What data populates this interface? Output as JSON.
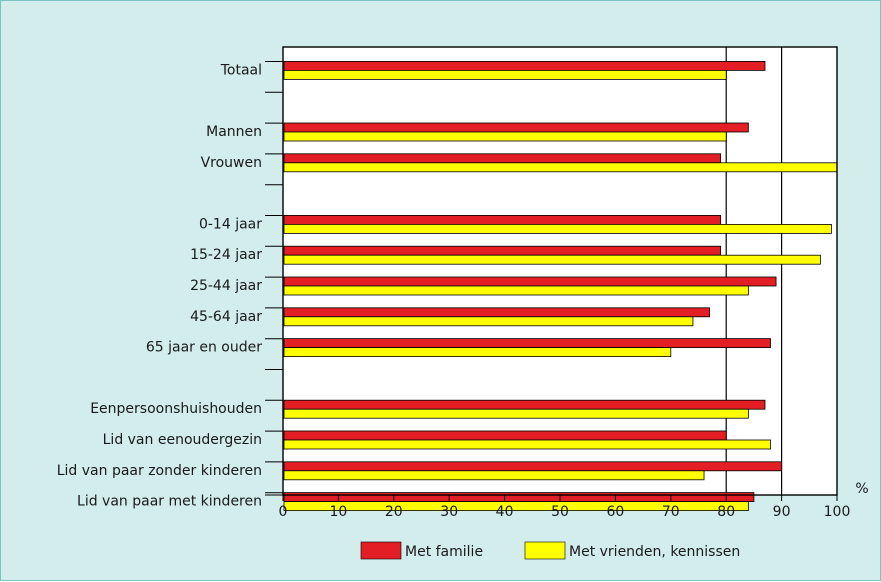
{
  "chart_data": {
    "type": "bar",
    "orientation": "horizontal",
    "categories": [
      "Totaal",
      "",
      "Mannen",
      "Vrouwen",
      "",
      "0-14 jaar",
      "15-24 jaar",
      "25-44 jaar",
      "45-64 jaar",
      "65 jaar en ouder",
      "",
      "Eenpersoonshuishouden",
      "Lid van eenoudergezin",
      "Lid van paar zonder kinderen",
      "Lid van paar met kinderen"
    ],
    "series": [
      {
        "name": "Met familie",
        "color": "#e31e24",
        "values": [
          87,
          null,
          84,
          79,
          null,
          79,
          79,
          89,
          77,
          88,
          null,
          87,
          80,
          90,
          85
        ]
      },
      {
        "name": "Met vrienden, kennissen",
        "color": "#ffff00",
        "values": [
          80,
          null,
          80,
          100,
          null,
          99,
          97,
          84,
          74,
          70,
          null,
          84,
          88,
          76,
          84
        ]
      }
    ],
    "xlim": [
      0,
      100
    ],
    "xticks": [
      "0",
      "10",
      "20",
      "30",
      "40",
      "50",
      "60",
      "70",
      "80",
      "90",
      "100"
    ],
    "xlabel": "%",
    "gridlines_at": [
      80,
      90
    ],
    "legend_position": "bottom"
  }
}
